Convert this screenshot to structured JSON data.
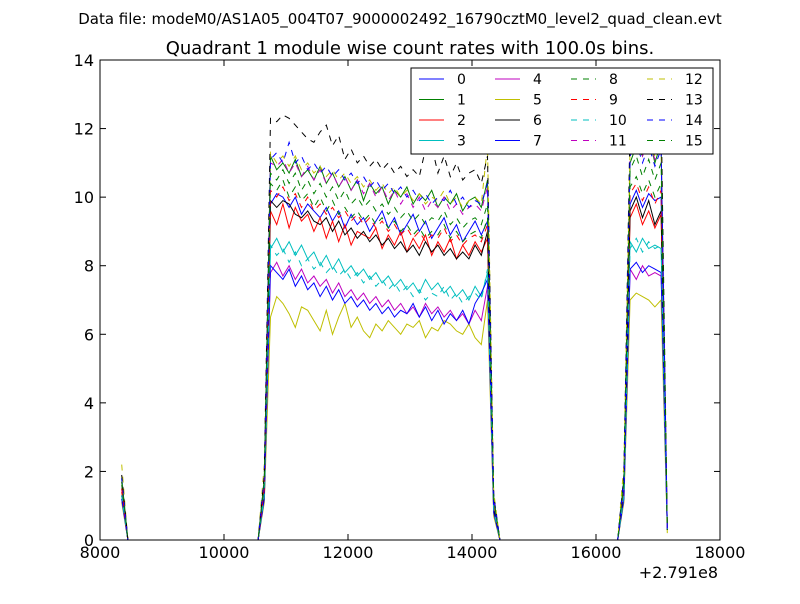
{
  "header": {
    "file_label": "Data file: modeM0/AS1A05_004T07_9000002492_16790cztM0_level2_quad_clean.evt"
  },
  "chart_data": {
    "type": "line",
    "title": "Quadrant 1 module wise count rates with 100.0s bins.",
    "xlabel": "",
    "ylabel": "",
    "x_offset_label": "+2.791e8",
    "xlim": [
      8000,
      18000
    ],
    "ylim": [
      0,
      14
    ],
    "x_ticks": [
      "8000",
      "10000",
      "12000",
      "14000",
      "16000",
      "18000"
    ],
    "y_ticks": [
      "0",
      "2",
      "4",
      "6",
      "8",
      "10",
      "12",
      "14"
    ],
    "grid": false,
    "legend_position": "top-right",
    "legend_columns": 4,
    "x": [
      8350,
      8450,
      8550,
      10550,
      10650,
      10750,
      10850,
      10950,
      11050,
      11150,
      11250,
      11350,
      11450,
      11550,
      11650,
      11750,
      11850,
      11950,
      12050,
      12150,
      12250,
      12350,
      12450,
      12550,
      12650,
      12750,
      12850,
      12950,
      13050,
      13150,
      13250,
      13350,
      13450,
      13550,
      13650,
      13750,
      13850,
      13950,
      14050,
      14150,
      14250,
      14350,
      14450,
      14550,
      16350,
      16450,
      16550,
      16650,
      16750,
      16850,
      16950,
      17050,
      17150
    ],
    "series": [
      {
        "name": "0",
        "color": "#0000ff",
        "dash": false,
        "values": [
          1.5,
          0,
          0,
          0,
          1.5,
          9.8,
          10.1,
          10.0,
          9.7,
          10.0,
          9.5,
          9.8,
          9.6,
          9.4,
          9.7,
          9.3,
          9.6,
          9.1,
          9.5,
          9.2,
          9.4,
          9.0,
          9.3,
          9.6,
          9.1,
          9.4,
          8.9,
          9.2,
          9.5,
          9.0,
          9.3,
          8.8,
          9.1,
          9.4,
          8.9,
          9.2,
          8.7,
          9.0,
          9.3,
          8.9,
          9.3,
          1.0,
          0,
          0,
          0,
          1.5,
          9.8,
          10.2,
          9.7,
          10.1,
          9.9,
          10.0,
          0.3
        ]
      },
      {
        "name": "1",
        "color": "#008000",
        "dash": false,
        "values": [
          1.8,
          0,
          0,
          0,
          1.8,
          11.2,
          10.8,
          11.0,
          10.7,
          11.1,
          10.6,
          10.8,
          10.5,
          10.9,
          10.4,
          10.7,
          10.3,
          10.6,
          10.2,
          10.5,
          9.9,
          10.4,
          10.1,
          10.3,
          9.8,
          10.2,
          10.0,
          10.3,
          9.8,
          10.1,
          9.9,
          10.2,
          9.7,
          10.0,
          9.8,
          10.1,
          9.6,
          9.9,
          10.0,
          9.7,
          10.5,
          1.2,
          0,
          0,
          0,
          1.8,
          11.0,
          11.5,
          11.2,
          11.8,
          11.0,
          11.6,
          0.3
        ]
      },
      {
        "name": "2",
        "color": "#ff0000",
        "dash": false,
        "values": [
          1.4,
          0,
          0,
          0,
          1.4,
          9.6,
          9.2,
          9.8,
          9.1,
          9.7,
          9.3,
          9.5,
          9.0,
          9.4,
          8.8,
          9.3,
          8.7,
          9.2,
          8.6,
          9.0,
          8.9,
          8.8,
          9.1,
          8.5,
          8.9,
          8.6,
          9.0,
          8.4,
          8.8,
          8.5,
          8.9,
          8.3,
          8.7,
          8.4,
          8.8,
          8.2,
          8.6,
          8.3,
          8.7,
          8.4,
          8.8,
          0.9,
          0,
          0,
          0,
          1.4,
          9.4,
          9.8,
          9.2,
          9.6,
          9.1,
          9.5,
          0.3
        ]
      },
      {
        "name": "3",
        "color": "#00bfbf",
        "dash": false,
        "values": [
          1.3,
          0,
          0,
          0,
          1.3,
          8.5,
          8.8,
          8.4,
          8.7,
          8.3,
          8.6,
          8.2,
          8.4,
          8.0,
          8.3,
          7.9,
          8.2,
          7.8,
          8.0,
          7.7,
          7.9,
          7.6,
          7.8,
          7.5,
          7.7,
          7.4,
          7.6,
          7.3,
          7.5,
          7.2,
          7.6,
          7.3,
          7.5,
          7.2,
          7.4,
          7.1,
          7.3,
          7.0,
          7.4,
          7.1,
          7.8,
          0.9,
          0,
          0,
          0,
          1.3,
          8.7,
          8.4,
          8.8,
          8.5,
          8.6,
          8.5,
          0.3
        ]
      },
      {
        "name": "4",
        "color": "#bf00bf",
        "dash": false,
        "values": [
          1.2,
          0,
          0,
          0,
          1.2,
          7.8,
          8.1,
          7.7,
          8.0,
          7.6,
          7.9,
          7.5,
          7.7,
          7.4,
          7.6,
          7.2,
          7.5,
          7.1,
          7.3,
          7.0,
          7.2,
          6.9,
          7.1,
          6.8,
          7.0,
          6.7,
          6.9,
          6.6,
          6.8,
          6.5,
          6.9,
          6.6,
          6.8,
          6.5,
          6.7,
          6.4,
          6.6,
          6.3,
          6.7,
          6.4,
          7.4,
          0.8,
          0,
          0,
          0,
          1.2,
          7.9,
          7.6,
          8.0,
          7.7,
          7.8,
          7.7,
          0.3
        ]
      },
      {
        "name": "5",
        "color": "#bfbf00",
        "dash": false,
        "values": [
          1.1,
          0,
          0,
          0,
          1.1,
          6.5,
          7.1,
          6.9,
          6.6,
          6.2,
          6.8,
          6.7,
          6.4,
          6.1,
          6.7,
          6.0,
          6.5,
          6.9,
          6.2,
          6.5,
          6.1,
          5.9,
          6.3,
          6.1,
          6.4,
          6.2,
          6.0,
          6.3,
          6.2,
          6.4,
          5.9,
          6.2,
          6.1,
          6.4,
          6.3,
          6.1,
          6.0,
          6.3,
          5.9,
          5.7,
          7.0,
          0.7,
          0,
          0,
          0,
          1.1,
          7.0,
          7.2,
          7.1,
          7.0,
          6.8,
          7.0,
          0.2
        ]
      },
      {
        "name": "6",
        "color": "#000000",
        "dash": false,
        "values": [
          1.3,
          0,
          0,
          0,
          1.3,
          9.9,
          9.7,
          9.9,
          9.8,
          9.5,
          9.4,
          9.6,
          9.3,
          9.2,
          9.4,
          9.0,
          9.3,
          8.9,
          9.1,
          8.8,
          9.0,
          8.7,
          8.9,
          8.6,
          8.8,
          8.5,
          8.7,
          8.4,
          8.6,
          8.3,
          8.7,
          8.4,
          8.6,
          8.3,
          8.5,
          8.2,
          8.4,
          8.2,
          8.6,
          8.3,
          9.0,
          0.9,
          0,
          0,
          0,
          1.3,
          9.6,
          10.0,
          9.4,
          9.9,
          9.2,
          9.6,
          0.3
        ]
      },
      {
        "name": "7",
        "color": "#0000ff",
        "dash": false,
        "values": [
          1.2,
          0,
          0,
          0,
          1.2,
          8.0,
          7.8,
          7.6,
          7.9,
          7.4,
          7.7,
          7.3,
          7.5,
          7.1,
          7.4,
          7.0,
          7.3,
          6.9,
          7.1,
          6.8,
          7.0,
          6.7,
          6.9,
          6.6,
          6.8,
          6.5,
          6.7,
          6.6,
          6.9,
          6.5,
          6.8,
          6.4,
          6.7,
          6.3,
          6.6,
          6.4,
          6.7,
          6.3,
          6.9,
          7.2,
          7.6,
          0.8,
          0,
          0,
          0,
          1.2,
          7.9,
          8.1,
          7.8,
          8.0,
          7.9,
          7.8,
          0.3
        ]
      },
      {
        "name": "8",
        "color": "#008000",
        "dash": true,
        "values": [
          1.6,
          0,
          0,
          0,
          1.6,
          10.4,
          10.2,
          10.5,
          10.0,
          10.3,
          9.9,
          10.1,
          9.7,
          10.0,
          9.6,
          9.9,
          9.5,
          9.7,
          9.4,
          9.6,
          9.3,
          9.5,
          9.2,
          9.4,
          9.1,
          9.3,
          9.0,
          9.2,
          8.9,
          9.1,
          8.8,
          9.0,
          8.9,
          9.2,
          8.8,
          9.0,
          8.7,
          8.9,
          9.0,
          8.8,
          9.4,
          1.1,
          0,
          0,
          0,
          1.6,
          10.3,
          10.6,
          10.1,
          10.5,
          10.0,
          10.4,
          0.3
        ]
      },
      {
        "name": "9",
        "color": "#ff0000",
        "dash": true,
        "values": [
          1.5,
          0,
          0,
          0,
          1.5,
          10.2,
          10.0,
          10.3,
          9.9,
          10.1,
          9.7,
          10.0,
          9.6,
          9.8,
          9.5,
          9.7,
          9.4,
          9.6,
          9.3,
          9.5,
          9.2,
          9.4,
          9.1,
          9.3,
          9.0,
          9.2,
          8.9,
          9.1,
          8.8,
          9.0,
          8.7,
          8.9,
          8.8,
          9.1,
          8.7,
          8.9,
          8.6,
          8.8,
          8.9,
          8.7,
          9.2,
          1.0,
          0,
          0,
          0,
          1.5,
          10.1,
          10.4,
          9.9,
          10.3,
          9.8,
          10.2,
          0.3
        ]
      },
      {
        "name": "10",
        "color": "#00bfbf",
        "dash": true,
        "values": [
          1.3,
          0,
          0,
          0,
          1.3,
          8.6,
          8.3,
          8.5,
          8.1,
          8.4,
          8.0,
          8.2,
          7.9,
          8.1,
          7.8,
          8.0,
          7.7,
          7.9,
          7.6,
          7.8,
          7.5,
          7.7,
          7.4,
          7.6,
          7.3,
          7.5,
          7.2,
          7.4,
          7.1,
          7.3,
          7.0,
          7.2,
          7.1,
          7.4,
          7.0,
          7.2,
          6.9,
          7.1,
          7.2,
          7.0,
          7.9,
          0.9,
          0,
          0,
          0,
          1.3,
          8.5,
          8.8,
          8.4,
          8.7,
          8.5,
          8.6,
          0.3
        ]
      },
      {
        "name": "11",
        "color": "#bf00bf",
        "dash": true,
        "values": [
          1.7,
          0,
          0,
          0,
          1.7,
          11.0,
          10.9,
          11.1,
          10.7,
          11.0,
          10.6,
          10.9,
          10.5,
          10.8,
          10.4,
          10.7,
          10.3,
          10.6,
          10.2,
          10.5,
          10.1,
          10.4,
          10.0,
          10.3,
          9.9,
          10.2,
          9.8,
          10.1,
          9.7,
          10.0,
          9.6,
          9.9,
          9.7,
          10.0,
          9.6,
          9.8,
          9.5,
          9.7,
          9.8,
          9.6,
          10.3,
          1.2,
          0,
          0,
          0,
          1.7,
          11.4,
          11.9,
          11.2,
          11.7,
          11.1,
          11.5,
          0.3
        ]
      },
      {
        "name": "12",
        "color": "#bfbf00",
        "dash": true,
        "values": [
          2.2,
          0,
          0,
          0,
          2.2,
          11.3,
          11.0,
          11.2,
          10.9,
          11.2,
          10.8,
          11.0,
          10.7,
          10.9,
          10.6,
          10.8,
          10.5,
          10.7,
          10.4,
          10.6,
          10.3,
          10.5,
          10.2,
          10.4,
          10.1,
          10.3,
          10.0,
          10.2,
          9.9,
          10.1,
          9.8,
          10.0,
          9.9,
          10.2,
          9.8,
          10.0,
          9.7,
          9.9,
          10.0,
          9.8,
          11.5,
          1.4,
          0,
          0,
          0,
          2.2,
          11.5,
          11.8,
          11.3,
          11.7,
          11.2,
          11.6,
          0.3
        ]
      },
      {
        "name": "13",
        "color": "#000000",
        "dash": true,
        "values": [
          1.9,
          0,
          0,
          0,
          1.9,
          12.3,
          12.2,
          12.4,
          12.3,
          12.1,
          11.9,
          11.7,
          11.6,
          11.9,
          12.1,
          11.5,
          11.8,
          11.1,
          11.4,
          11.0,
          11.2,
          10.9,
          11.1,
          10.8,
          11.0,
          10.7,
          10.9,
          10.6,
          10.8,
          10.6,
          11.4,
          11.5,
          10.7,
          11.2,
          10.6,
          11.0,
          10.5,
          10.7,
          10.8,
          10.4,
          11.2,
          1.3,
          0,
          0,
          0,
          1.9,
          12.2,
          12.5,
          12.1,
          12.9,
          12.0,
          12.6,
          0.3
        ]
      },
      {
        "name": "14",
        "color": "#0000ff",
        "dash": true,
        "values": [
          1.8,
          0,
          0,
          0,
          1.8,
          11.1,
          11.3,
          11.0,
          11.6,
          11.0,
          11.2,
          10.8,
          11.0,
          10.7,
          10.9,
          10.6,
          10.8,
          10.5,
          10.7,
          10.4,
          10.6,
          10.3,
          10.5,
          10.2,
          10.4,
          10.1,
          10.3,
          10.0,
          10.2,
          9.9,
          10.1,
          9.8,
          10.0,
          9.9,
          10.2,
          9.8,
          10.0,
          9.7,
          9.9,
          9.8,
          10.4,
          1.3,
          0,
          0,
          0,
          1.8,
          11.2,
          11.6,
          11.0,
          11.5,
          10.9,
          11.4,
          0.3
        ]
      },
      {
        "name": "15",
        "color": "#008000",
        "dash": true,
        "values": [
          1.7,
          0,
          0,
          0,
          1.7,
          10.7,
          10.5,
          10.8,
          10.4,
          10.7,
          10.2,
          10.5,
          10.1,
          10.4,
          10.0,
          10.3,
          9.9,
          10.2,
          9.8,
          10.0,
          9.7,
          9.9,
          9.6,
          9.8,
          9.5,
          9.7,
          9.4,
          9.6,
          9.3,
          9.5,
          9.2,
          9.4,
          9.3,
          9.6,
          9.2,
          9.4,
          9.1,
          9.3,
          9.4,
          9.2,
          9.8,
          1.2,
          0,
          0,
          0,
          1.7,
          10.8,
          11.2,
          10.6,
          11.1,
          10.5,
          11.0,
          0.3
        ]
      }
    ]
  }
}
